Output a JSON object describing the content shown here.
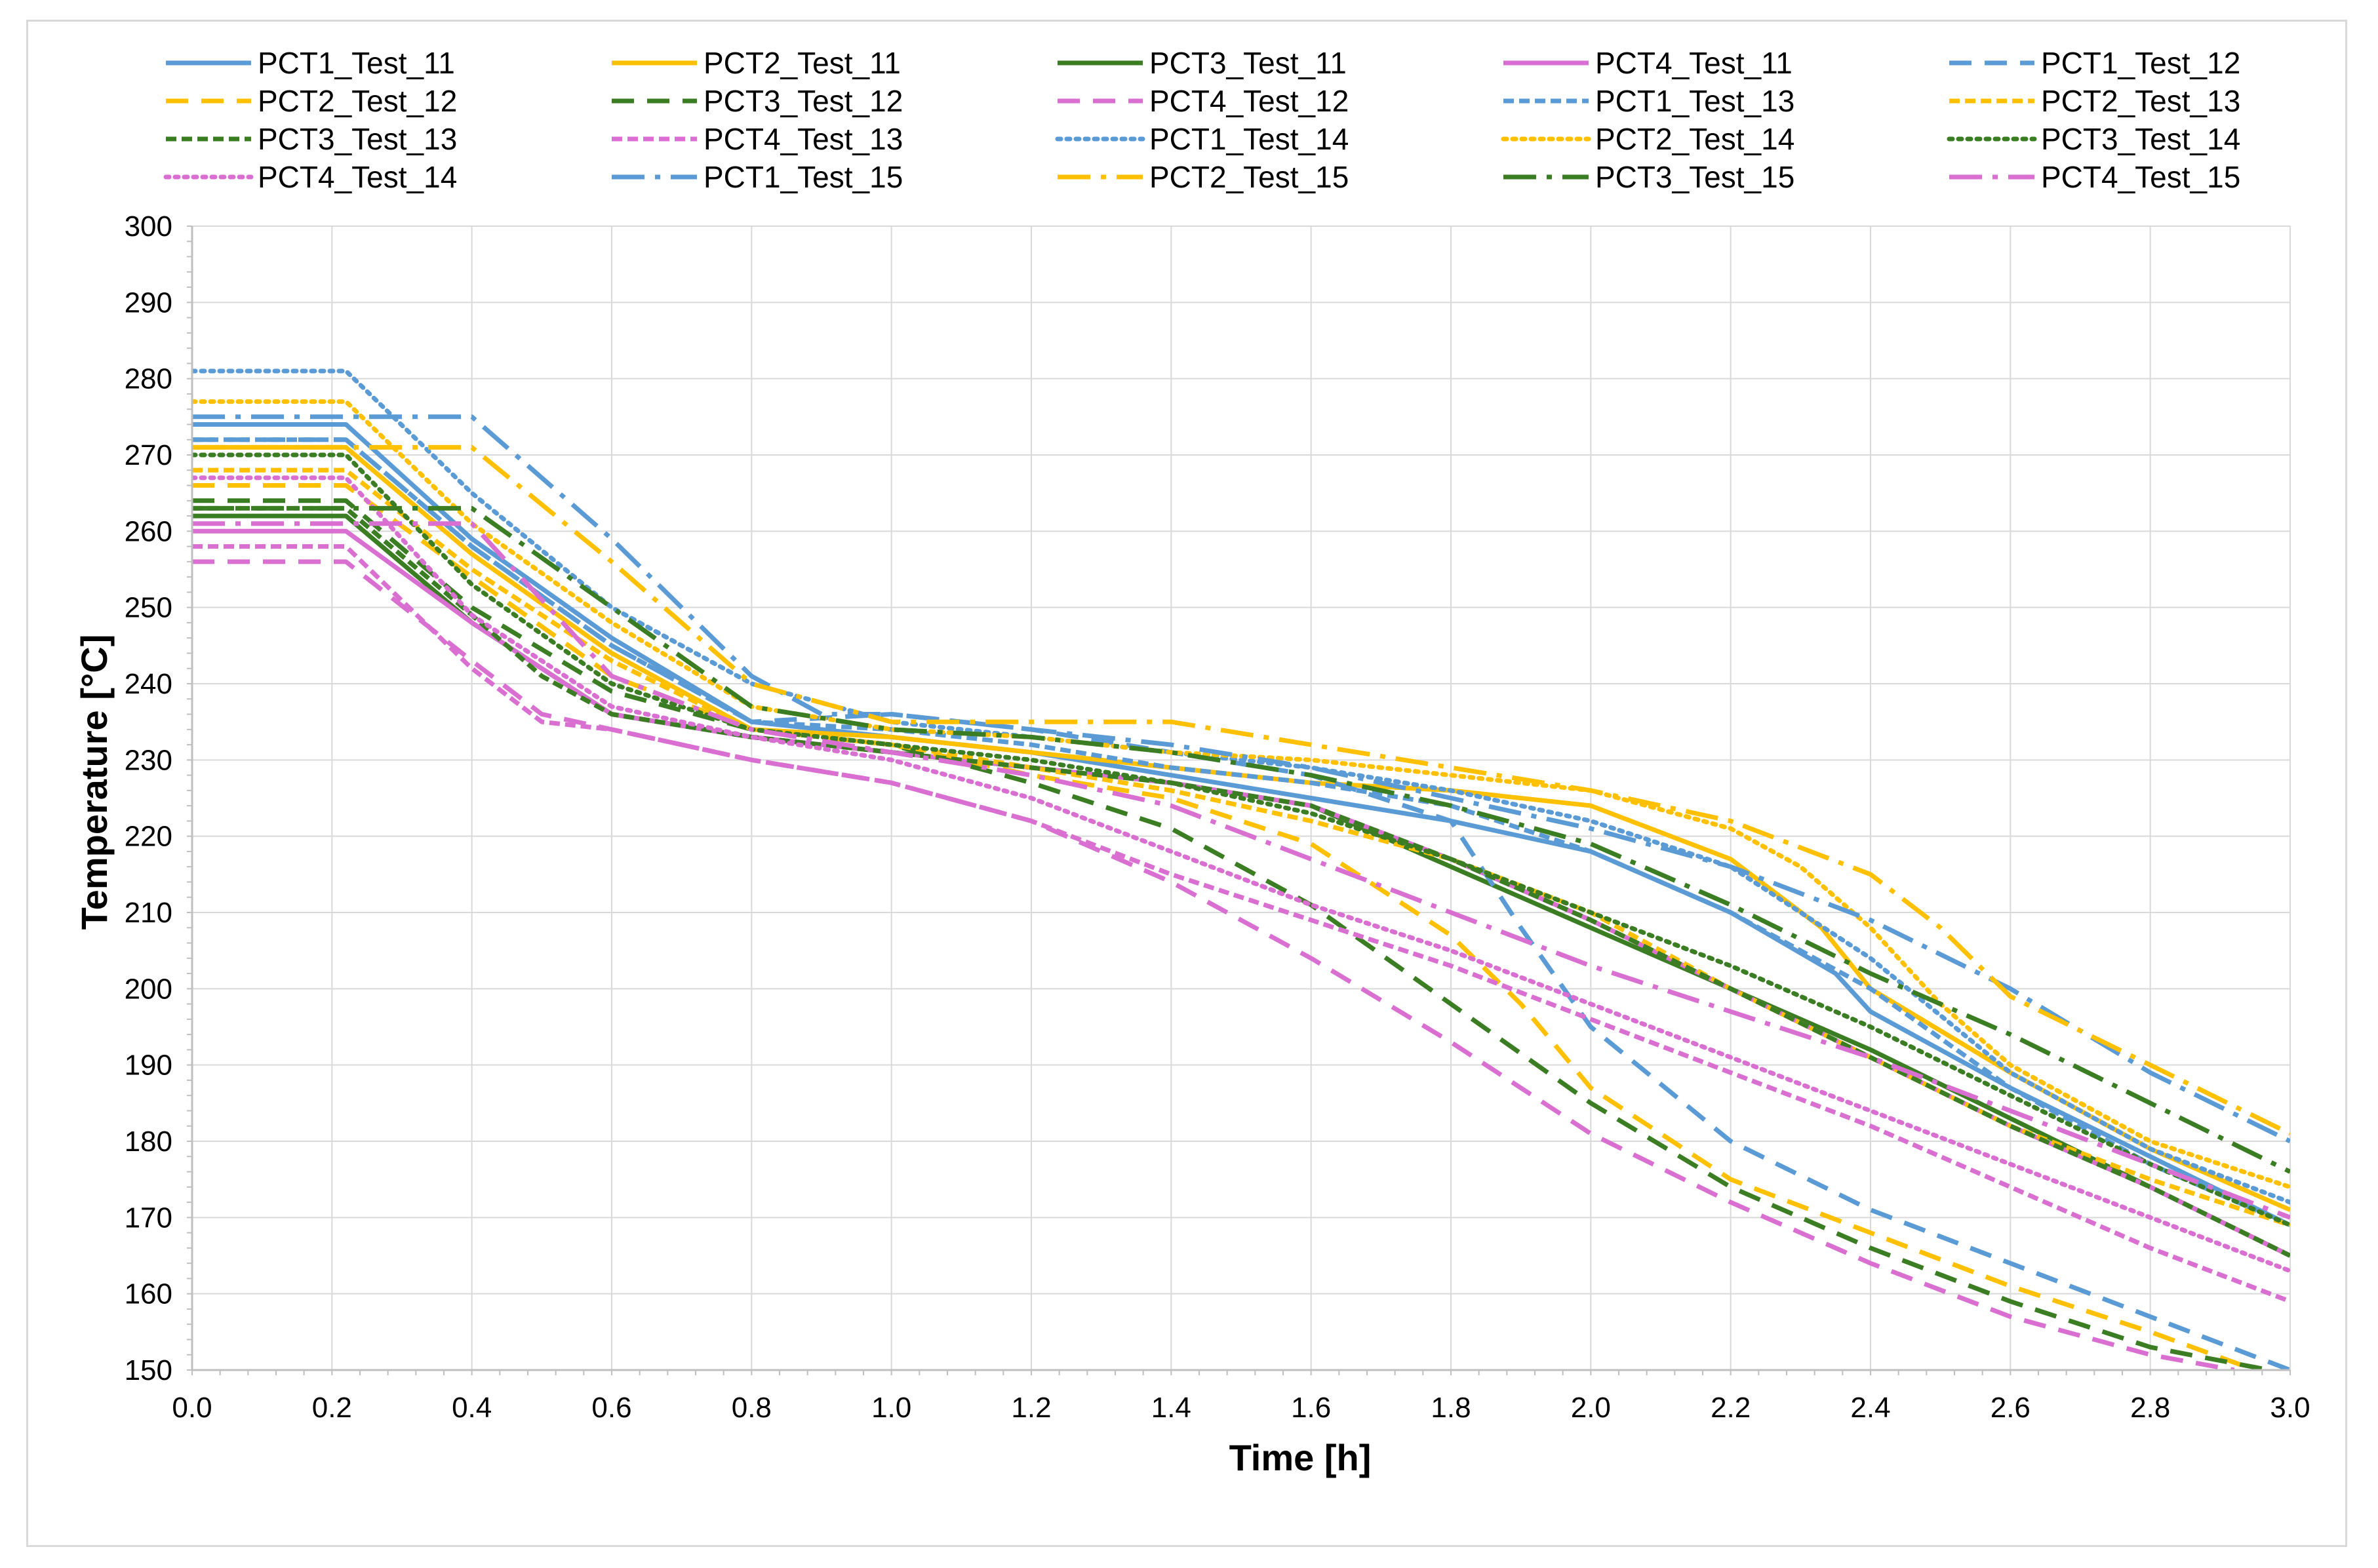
{
  "chart_data": {
    "type": "line",
    "title": "",
    "xlabel": "Time [h]",
    "ylabel": "Temperature [°C]",
    "xlim": [
      0,
      3
    ],
    "ylim": [
      150,
      300
    ],
    "x_ticks": [
      0.0,
      0.2,
      0.4,
      0.6,
      0.8,
      1.0,
      1.2,
      1.4,
      1.6,
      1.8,
      2.0,
      2.2,
      2.4,
      2.6,
      2.8,
      3.0
    ],
    "x_tick_labels": [
      "0.0",
      "0.2",
      "0.4",
      "0.6",
      "0.8",
      "1.0",
      "1.2",
      "1.4",
      "1.6",
      "1.8",
      "2.0",
      "2.2",
      "2.4",
      "2.6",
      "2.8",
      "3.0"
    ],
    "y_ticks": [
      150,
      160,
      170,
      180,
      190,
      200,
      210,
      220,
      230,
      240,
      250,
      260,
      270,
      280,
      290,
      300
    ],
    "y_tick_labels": [
      "150",
      "160",
      "170",
      "180",
      "190",
      "200",
      "210",
      "220",
      "230",
      "240",
      "250",
      "260",
      "270",
      "280",
      "290",
      "300"
    ],
    "grid": true,
    "legend_position": "top",
    "colors": {
      "PCT1": "#5b9bd5",
      "PCT2": "#ffc000",
      "PCT3": "#3a7d22",
      "PCT4": "#d96fd1",
      "grid": "#d9d9d9",
      "axis": "#bfbfbf",
      "text": "#000000"
    },
    "series": [
      {
        "name": "PCT1_Test_11",
        "color_key": "PCT1",
        "style": "solid",
        "x": [
          0,
          0.22,
          0.4,
          0.6,
          0.8,
          1.0,
          1.2,
          1.4,
          1.6,
          1.8,
          2.0,
          2.2,
          2.35,
          2.4,
          2.6,
          2.8,
          3.0
        ],
        "y": [
          274,
          274,
          259,
          246,
          235,
          233,
          231,
          228,
          225,
          222,
          218,
          210,
          202,
          197,
          187,
          178,
          169
        ]
      },
      {
        "name": "PCT2_Test_11",
        "color_key": "PCT2",
        "style": "solid",
        "x": [
          0,
          0.22,
          0.4,
          0.6,
          0.8,
          1.0,
          1.2,
          1.4,
          1.6,
          1.8,
          2.0,
          2.2,
          2.33,
          2.4,
          2.6,
          2.8,
          3.0
        ],
        "y": [
          271,
          271,
          257,
          244,
          234,
          233,
          231,
          229,
          227,
          226,
          224,
          217,
          208,
          200,
          189,
          179,
          171
        ]
      },
      {
        "name": "PCT3_Test_11",
        "color_key": "PCT3",
        "style": "solid",
        "x": [
          0,
          0.22,
          0.4,
          0.5,
          0.6,
          0.8,
          1.0,
          1.2,
          1.4,
          1.6,
          1.8,
          2.0,
          2.2,
          2.4,
          2.6,
          2.8,
          3.0
        ],
        "y": [
          262,
          262,
          248,
          242,
          236,
          233,
          231,
          229,
          227,
          224,
          216,
          208,
          200,
          192,
          183,
          174,
          165
        ]
      },
      {
        "name": "PCT4_Test_11",
        "color_key": "PCT4",
        "style": "solid",
        "x": [
          0,
          0.22,
          0.4,
          0.5,
          0.6,
          0.8,
          1.0,
          1.2,
          1.4,
          1.6,
          1.8,
          2.0,
          2.2,
          2.4,
          2.6,
          2.8,
          3.0
        ],
        "y": [
          260,
          260,
          248,
          242,
          236,
          233,
          231,
          229,
          227,
          224,
          217,
          209,
          200,
          191,
          182,
          174,
          165
        ]
      },
      {
        "name": "PCT1_Test_12",
        "color_key": "PCT1",
        "style": "dash",
        "x": [
          0,
          0.22,
          0.4,
          0.6,
          0.8,
          1.0,
          1.2,
          1.4,
          1.6,
          1.8,
          1.9,
          2.0,
          2.2,
          2.4,
          2.6,
          2.8,
          3.0
        ],
        "y": [
          272,
          272,
          258,
          245,
          235,
          236,
          234,
          231,
          228,
          222,
          208,
          195,
          180,
          171,
          164,
          157,
          150
        ]
      },
      {
        "name": "PCT2_Test_12",
        "color_key": "PCT2",
        "style": "dash",
        "x": [
          0,
          0.22,
          0.4,
          0.6,
          0.8,
          1.0,
          1.2,
          1.4,
          1.6,
          1.8,
          1.9,
          2.0,
          2.2,
          2.4,
          2.6,
          2.8,
          2.95
        ],
        "y": [
          266,
          266,
          254,
          241,
          234,
          232,
          228,
          225,
          219,
          207,
          198,
          187,
          175,
          168,
          161,
          155,
          150
        ]
      },
      {
        "name": "PCT3_Test_12",
        "color_key": "PCT3",
        "style": "dash",
        "x": [
          0,
          0.22,
          0.4,
          0.6,
          0.8,
          1.0,
          1.2,
          1.4,
          1.6,
          1.8,
          2.0,
          2.2,
          2.4,
          2.6,
          2.8,
          2.97
        ],
        "y": [
          264,
          264,
          250,
          239,
          234,
          232,
          227,
          221,
          211,
          198,
          185,
          174,
          166,
          159,
          153,
          150
        ]
      },
      {
        "name": "PCT4_Test_12",
        "color_key": "PCT4",
        "style": "dash",
        "x": [
          0,
          0.22,
          0.4,
          0.5,
          0.6,
          0.8,
          1.0,
          1.2,
          1.4,
          1.6,
          1.8,
          2.0,
          2.2,
          2.4,
          2.6,
          2.8,
          2.92
        ],
        "y": [
          256,
          256,
          243,
          236,
          234,
          230,
          227,
          222,
          214,
          204,
          193,
          181,
          172,
          164,
          157,
          152,
          150
        ]
      },
      {
        "name": "PCT1_Test_13",
        "color_key": "PCT1",
        "style": "shortdash",
        "x": [
          0,
          0.22,
          0.4,
          0.6,
          0.8,
          1.0,
          1.2,
          1.4,
          1.6,
          1.8,
          2.0,
          2.2,
          2.4,
          2.6,
          2.8,
          3.0
        ],
        "y": [
          272,
          272,
          258,
          245,
          235,
          234,
          232,
          229,
          227,
          224,
          218,
          210,
          200,
          187,
          177,
          169
        ]
      },
      {
        "name": "PCT2_Test_13",
        "color_key": "PCT2",
        "style": "shortdash",
        "x": [
          0,
          0.22,
          0.4,
          0.6,
          0.8,
          1.0,
          1.2,
          1.4,
          1.6,
          1.8,
          2.0,
          2.2,
          2.4,
          2.6,
          2.8,
          3.0
        ],
        "y": [
          268,
          268,
          255,
          243,
          234,
          232,
          229,
          226,
          222,
          217,
          210,
          200,
          191,
          182,
          175,
          169
        ]
      },
      {
        "name": "PCT3_Test_13",
        "color_key": "PCT3",
        "style": "shortdash",
        "x": [
          0,
          0.22,
          0.4,
          0.5,
          0.6,
          0.8,
          1.0,
          1.2,
          1.4,
          1.6,
          1.8,
          2.0,
          2.2,
          2.4,
          2.6,
          2.8,
          3.0
        ],
        "y": [
          263,
          263,
          249,
          241,
          236,
          233,
          231,
          229,
          227,
          224,
          217,
          209,
          200,
          191,
          182,
          174,
          165
        ]
      },
      {
        "name": "PCT4_Test_13",
        "color_key": "PCT4",
        "style": "shortdash",
        "x": [
          0,
          0.22,
          0.4,
          0.5,
          0.6,
          0.8,
          1.0,
          1.2,
          1.4,
          1.6,
          1.8,
          2.0,
          2.2,
          2.4,
          2.6,
          2.8,
          3.0
        ],
        "y": [
          258,
          258,
          242,
          235,
          234,
          230,
          227,
          222,
          215,
          209,
          203,
          196,
          189,
          182,
          174,
          166,
          159
        ]
      },
      {
        "name": "PCT1_Test_14",
        "color_key": "PCT1",
        "style": "dot",
        "x": [
          0,
          0.22,
          0.4,
          0.6,
          0.8,
          1.0,
          1.2,
          1.4,
          1.6,
          1.8,
          2.0,
          2.2,
          2.4,
          2.6,
          2.8,
          3.0
        ],
        "y": [
          281,
          281,
          265,
          250,
          240,
          235,
          233,
          231,
          229,
          226,
          222,
          216,
          204,
          189,
          179,
          172
        ]
      },
      {
        "name": "PCT2_Test_14",
        "color_key": "PCT2",
        "style": "dot",
        "x": [
          0,
          0.22,
          0.4,
          0.6,
          0.8,
          1.0,
          1.2,
          1.4,
          1.6,
          1.8,
          2.0,
          2.2,
          2.3,
          2.4,
          2.5,
          2.6,
          2.8,
          3.0
        ],
        "y": [
          277,
          277,
          261,
          248,
          237,
          234,
          233,
          231,
          230,
          228,
          226,
          221,
          216,
          208,
          198,
          190,
          180,
          174
        ]
      },
      {
        "name": "PCT3_Test_14",
        "color_key": "PCT3",
        "style": "dot",
        "x": [
          0,
          0.22,
          0.4,
          0.6,
          0.8,
          1.0,
          1.2,
          1.4,
          1.6,
          1.8,
          2.0,
          2.2,
          2.4,
          2.6,
          2.8,
          3.0
        ],
        "y": [
          270,
          270,
          253,
          240,
          234,
          232,
          230,
          227,
          223,
          217,
          210,
          203,
          195,
          186,
          177,
          169
        ]
      },
      {
        "name": "PCT4_Test_14",
        "color_key": "PCT4",
        "style": "dot",
        "x": [
          0,
          0.22,
          0.4,
          0.6,
          0.8,
          1.0,
          1.2,
          1.4,
          1.6,
          1.8,
          2.0,
          2.2,
          2.4,
          2.6,
          2.8,
          3.0
        ],
        "y": [
          267,
          267,
          249,
          237,
          233,
          230,
          225,
          218,
          211,
          205,
          198,
          191,
          184,
          177,
          170,
          163
        ]
      },
      {
        "name": "PCT1_Test_15",
        "color_key": "PCT1",
        "style": "dashdot",
        "x": [
          0,
          0.22,
          0.4,
          0.6,
          0.8,
          0.9,
          1.0,
          1.2,
          1.4,
          1.6,
          1.8,
          2.0,
          2.2,
          2.4,
          2.6,
          2.8,
          3.0
        ],
        "y": [
          275,
          275,
          275,
          259,
          241,
          236,
          236,
          234,
          232,
          229,
          225,
          221,
          216,
          209,
          200,
          189,
          180
        ]
      },
      {
        "name": "PCT2_Test_15",
        "color_key": "PCT2",
        "style": "dashdot",
        "x": [
          0,
          0.22,
          0.4,
          0.6,
          0.8,
          1.0,
          1.2,
          1.4,
          1.6,
          1.8,
          2.0,
          2.2,
          2.4,
          2.5,
          2.6,
          2.8,
          3.0
        ],
        "y": [
          271,
          271,
          271,
          256,
          240,
          235,
          235,
          235,
          232,
          229,
          226,
          222,
          215,
          208,
          199,
          190,
          181
        ]
      },
      {
        "name": "PCT3_Test_15",
        "color_key": "PCT3",
        "style": "dashdot",
        "x": [
          0,
          0.22,
          0.4,
          0.6,
          0.8,
          1.0,
          1.2,
          1.4,
          1.6,
          1.8,
          2.0,
          2.2,
          2.4,
          2.6,
          2.8,
          3.0
        ],
        "y": [
          263,
          263,
          263,
          250,
          237,
          234,
          233,
          231,
          228,
          224,
          219,
          211,
          202,
          194,
          185,
          176
        ]
      },
      {
        "name": "PCT4_Test_15",
        "color_key": "PCT4",
        "style": "dashdot",
        "x": [
          0,
          0.22,
          0.4,
          0.6,
          0.8,
          1.0,
          1.2,
          1.4,
          1.6,
          1.8,
          2.0,
          2.2,
          2.4,
          2.6,
          2.8,
          3.0
        ],
        "y": [
          261,
          261,
          261,
          241,
          234,
          231,
          228,
          224,
          217,
          210,
          203,
          197,
          191,
          184,
          177,
          170
        ]
      }
    ]
  }
}
